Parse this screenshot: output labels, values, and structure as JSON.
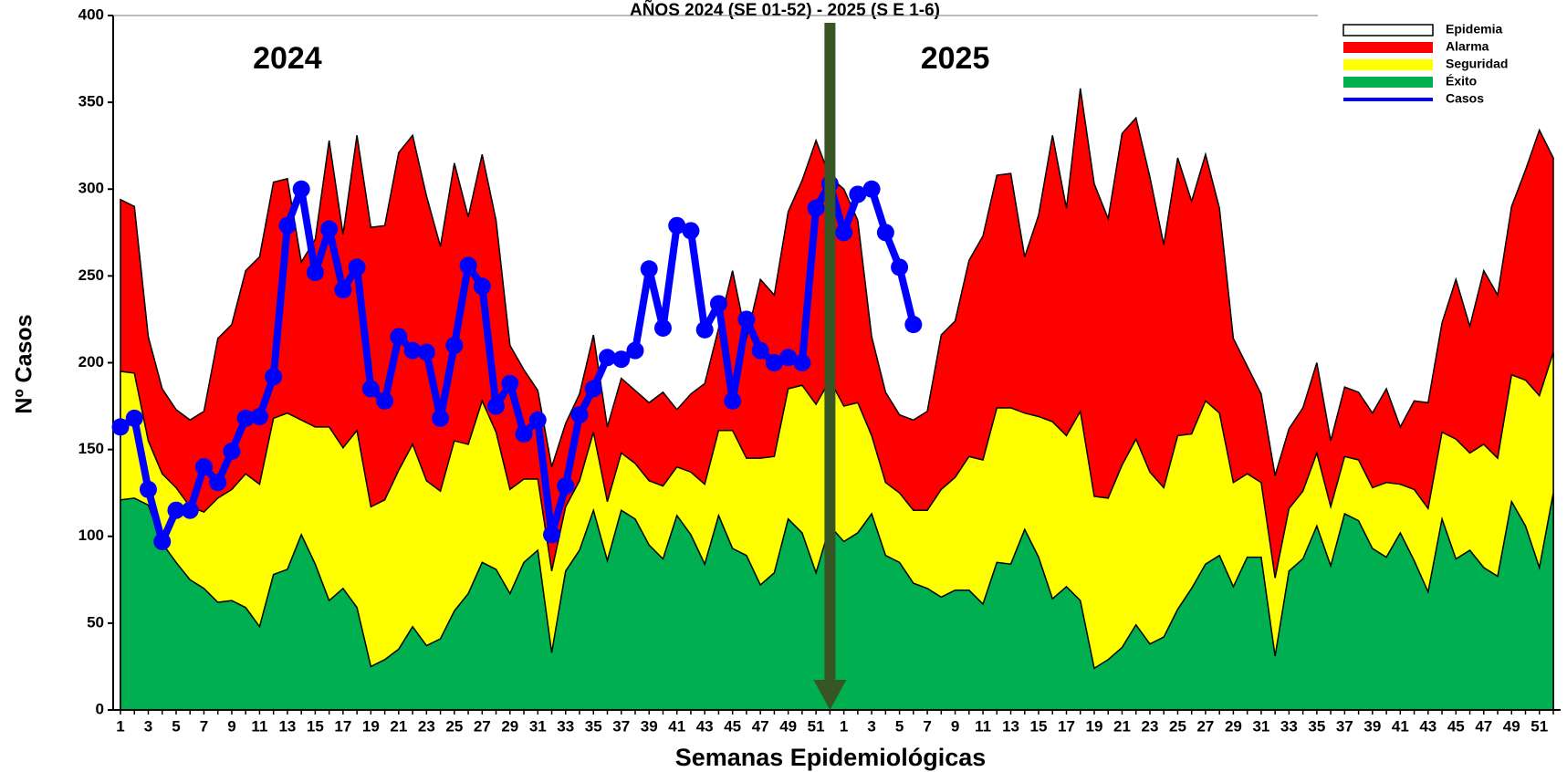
{
  "chart_data": {
    "type": "area",
    "title": "AÑOS 2024  (SE 01-52) - 2025 (S E 1-6)",
    "annotations": [
      "2024",
      "2025"
    ],
    "x_label": "Semanas Epidemiológicas",
    "y_label": "Nº Casos",
    "ylim": [
      0,
      400
    ],
    "yticks": [
      0,
      50,
      100,
      150,
      200,
      250,
      300,
      350,
      400
    ],
    "categories": [
      "1",
      null,
      "3",
      null,
      "5",
      null,
      "7",
      null,
      "9",
      null,
      "11",
      null,
      "13",
      null,
      "15",
      null,
      "17",
      null,
      "19",
      null,
      "21",
      null,
      "23",
      null,
      "25",
      null,
      "27",
      null,
      "29",
      null,
      "31",
      null,
      "33",
      null,
      "35",
      null,
      "37",
      null,
      "39",
      null,
      "41",
      null,
      "43",
      null,
      "45",
      null,
      "47",
      null,
      "49",
      null,
      "51",
      null,
      "1",
      null,
      "3",
      null,
      "5",
      null,
      "7",
      null,
      "9",
      null,
      "11",
      null,
      "13",
      null,
      "15",
      null,
      "17",
      null,
      "19",
      null,
      "21",
      null,
      "23",
      null,
      "25",
      null,
      "27",
      null,
      "29",
      null,
      "31",
      null,
      "33",
      null,
      "35",
      null,
      "37",
      null,
      "39",
      null,
      "41",
      null,
      "43",
      null,
      "45",
      null,
      "47",
      null,
      "49",
      null,
      "51",
      null
    ],
    "legend_position": "upper right",
    "legend_only": [
      {
        "name": "Epidemia",
        "color": "#ffffff"
      }
    ],
    "series": [
      {
        "name": "Alarma",
        "color": "#ff0000",
        "kind": "area",
        "values": [
          294,
          290,
          215,
          185,
          173,
          167,
          172,
          214,
          222,
          253,
          261,
          304,
          306,
          258,
          271,
          328,
          274,
          331,
          278,
          279,
          321,
          331,
          296,
          267,
          315,
          284,
          320,
          282,
          210,
          196,
          184,
          140,
          165,
          182,
          216,
          163,
          191,
          184,
          177,
          183,
          173,
          182,
          188,
          220,
          253,
          214,
          248,
          239,
          287,
          305,
          328,
          307,
          300,
          282,
          215,
          183,
          170,
          167,
          172,
          216,
          224,
          259,
          273,
          308,
          309,
          261,
          285,
          331,
          289,
          358,
          303,
          283,
          332,
          341,
          307,
          268,
          318,
          293,
          320,
          289,
          214,
          198,
          182,
          135,
          162,
          174,
          200,
          155,
          186,
          183,
          171,
          185,
          163,
          178,
          177,
          223,
          248,
          221,
          253,
          239,
          290,
          311,
          334,
          318
        ]
      },
      {
        "name": "Seguridad",
        "color": "#ffff00",
        "kind": "area",
        "values": [
          195,
          194,
          155,
          136,
          128,
          117,
          114,
          122,
          127,
          136,
          130,
          168,
          171,
          167,
          163,
          163,
          151,
          161,
          117,
          121,
          138,
          153,
          132,
          126,
          155,
          153,
          178,
          160,
          127,
          133,
          133,
          80,
          117,
          132,
          160,
          120,
          148,
          142,
          132,
          129,
          140,
          137,
          130,
          161,
          161,
          145,
          145,
          146,
          185,
          187,
          176,
          190,
          175,
          177,
          158,
          131,
          125,
          115,
          115,
          127,
          134,
          146,
          144,
          174,
          174,
          171,
          169,
          166,
          158,
          172,
          123,
          122,
          141,
          156,
          137,
          128,
          158,
          159,
          178,
          171,
          131,
          136,
          131,
          76,
          116,
          126,
          148,
          117,
          146,
          144,
          128,
          131,
          130,
          127,
          116,
          160,
          156,
          148,
          153,
          145,
          193,
          190,
          181,
          206
        ]
      },
      {
        "name": "Éxito",
        "color": "#00b050",
        "kind": "area",
        "values": [
          121,
          122,
          118,
          96,
          85,
          75,
          70,
          62,
          63,
          59,
          48,
          78,
          81,
          101,
          84,
          63,
          70,
          59,
          25,
          29,
          35,
          48,
          37,
          41,
          57,
          67,
          85,
          81,
          67,
          85,
          92,
          33,
          80,
          92,
          115,
          86,
          115,
          110,
          95,
          87,
          112,
          101,
          84,
          112,
          93,
          89,
          72,
          79,
          110,
          102,
          79,
          106,
          97,
          102,
          113,
          89,
          85,
          73,
          70,
          65,
          69,
          69,
          61,
          85,
          84,
          104,
          88,
          64,
          71,
          63,
          24,
          29,
          36,
          49,
          38,
          42,
          58,
          70,
          84,
          89,
          71,
          88,
          88,
          31,
          80,
          87,
          106,
          83,
          113,
          109,
          93,
          88,
          102,
          86,
          68,
          110,
          87,
          92,
          82,
          77,
          120,
          106,
          82,
          125
        ]
      },
      {
        "name": "Casos",
        "color": "#0000ff",
        "kind": "line",
        "values": [
          163,
          168,
          127,
          97,
          115,
          115,
          140,
          131,
          149,
          168,
          169,
          192,
          279,
          300,
          252,
          277,
          242,
          255,
          185,
          178,
          215,
          207,
          206,
          168,
          210,
          256,
          244,
          175,
          188,
          159,
          167,
          101,
          129,
          170,
          185,
          203,
          202,
          207,
          254,
          220,
          279,
          276,
          219,
          234,
          178,
          225,
          207,
          200,
          203,
          200,
          289,
          303,
          275,
          297,
          300,
          275,
          255,
          222,
          null,
          null,
          null,
          null,
          null,
          null,
          null,
          null,
          null,
          null,
          null,
          null,
          null,
          null,
          null,
          null,
          null,
          null,
          null,
          null,
          null,
          null,
          null,
          null,
          null,
          null,
          null,
          null,
          null,
          null,
          null,
          null,
          null,
          null,
          null,
          null,
          null,
          null,
          null,
          null,
          null,
          null,
          null,
          null,
          null,
          null
        ]
      }
    ]
  }
}
